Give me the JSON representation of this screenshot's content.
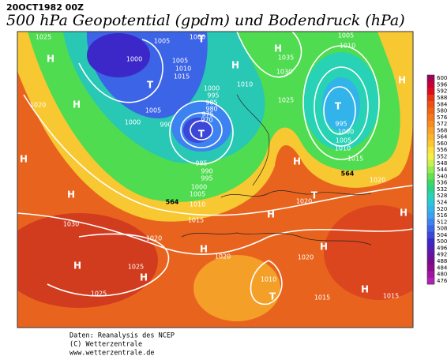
{
  "header": {
    "date": "20OCT1982 00Z",
    "title": "500 hPa Geopotential (gpdm) und Bodendruck (hPa)"
  },
  "colorbar": {
    "ticks": [
      600,
      596,
      592,
      588,
      584,
      580,
      576,
      572,
      568,
      564,
      560,
      556,
      552,
      548,
      544,
      540,
      536,
      532,
      528,
      524,
      520,
      516,
      512,
      508,
      504,
      500,
      496,
      492,
      488,
      484,
      480,
      476
    ],
    "colors": [
      "#a0005a",
      "#c80032",
      "#e00a1e",
      "#e83214",
      "#ec5014",
      "#f06414",
      "#f4781e",
      "#f88c1e",
      "#fca028",
      "#fcb428",
      "#fcc832",
      "#fce13c",
      "#f0f046",
      "#c8f050",
      "#96eb50",
      "#64e150",
      "#3cd764",
      "#28d28c",
      "#28d2b4",
      "#28c8d7",
      "#32b4eb",
      "#3ca0f0",
      "#3c82f0",
      "#3c64e6",
      "#3c46d7",
      "#3c28c8",
      "#501eb4",
      "#6414a0",
      "#780a8c",
      "#8c0a8c",
      "#a014a0",
      "#b41eb4"
    ]
  },
  "map": {
    "isobar_labels": [
      "1025",
      "1005",
      "1000",
      "1000",
      "1005",
      "1010",
      "1015",
      "1020",
      "1005",
      "1000",
      "990",
      "1000",
      "995",
      "985",
      "980",
      "975",
      "970",
      "1010",
      "1035",
      "1030",
      "1025",
      "1005",
      "1010",
      "995",
      "1000",
      "1005",
      "1010",
      "1015",
      "985",
      "990",
      "995",
      "1000",
      "1005",
      "1010",
      "1015",
      "1020",
      "1020",
      "1030",
      "1020",
      "1025",
      "1025",
      "1020",
      "1020",
      "1010",
      "1015",
      "1015",
      "564",
      "564"
    ],
    "pressure_centers": [
      "H",
      "H",
      "H",
      "H",
      "H",
      "H",
      "H",
      "H",
      "H",
      "H",
      "H",
      "H",
      "H",
      "H",
      "H",
      "T",
      "T",
      "T",
      "T",
      "T",
      "T"
    ]
  },
  "footer": {
    "lines": [
      "Daten: Reanalysis des NCEP",
      "(C) Wetterzentrale",
      "www.wetterzentrale.de"
    ]
  }
}
